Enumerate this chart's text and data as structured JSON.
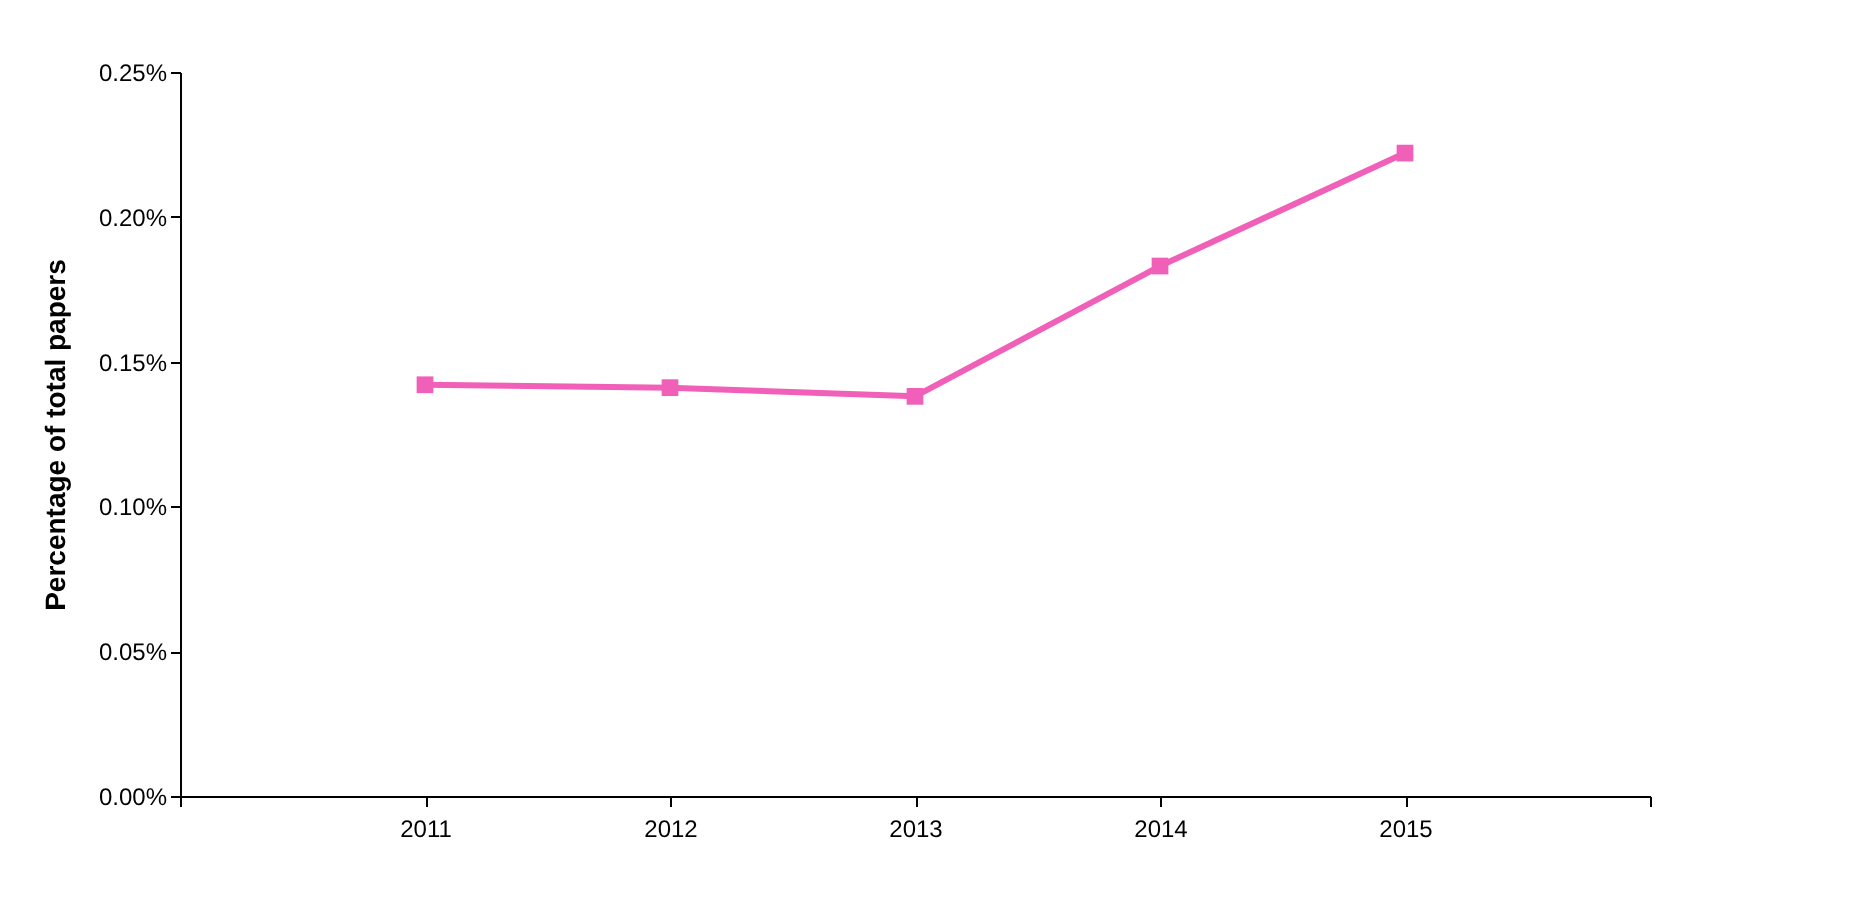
{
  "chart_data": {
    "type": "line",
    "ylabel": "Percentage of total papers",
    "x": [
      2011,
      2012,
      2013,
      2014,
      2015
    ],
    "series": [
      {
        "color": "#f060b8",
        "values": [
          0.142,
          0.141,
          0.138,
          0.183,
          0.222
        ]
      }
    ],
    "xlim": [
      2010,
      2016
    ],
    "xticks": [
      {
        "value": 2010,
        "label": null
      },
      2011,
      2012,
      2013,
      2014,
      2015,
      {
        "value": 2016,
        "label": null
      }
    ],
    "ylim": [
      0,
      0.25
    ],
    "yticks": [
      {
        "value": 0,
        "label": "0.00%"
      },
      {
        "value": 0.05,
        "label": "0.05%"
      },
      {
        "value": 0.1,
        "label": "0.10%"
      },
      {
        "value": 0.15,
        "label": "0.15%"
      },
      {
        "value": 0.2,
        "label": "0.20%"
      },
      {
        "value": 0.25,
        "label": "0.25%"
      }
    ],
    "grid": false,
    "marker": "square",
    "line_style": "solid"
  }
}
